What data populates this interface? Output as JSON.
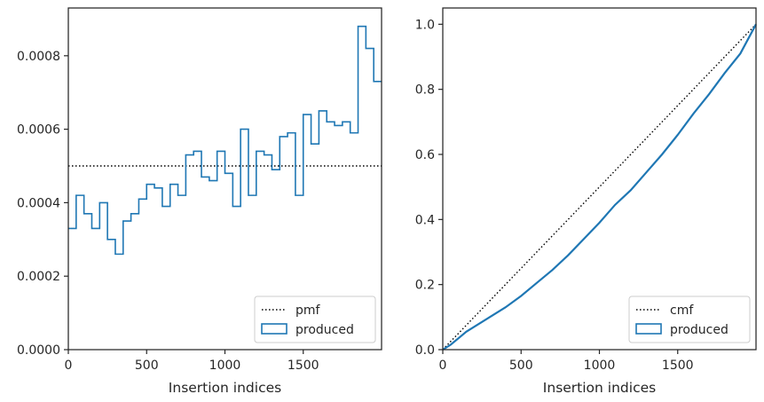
{
  "chart_data": [
    {
      "type": "line",
      "step": true,
      "xlabel": "Insertion indices",
      "ylabel": "",
      "xlim": [
        0,
        2000
      ],
      "ylim": [
        0,
        0.00093
      ],
      "xticks": [
        0,
        500,
        1000,
        1500
      ],
      "yticks": [
        0.0,
        0.0002,
        0.0004,
        0.0006,
        0.0008
      ],
      "ytick_labels": [
        "0.0000",
        "0.0002",
        "0.0004",
        "0.0006",
        "0.0008"
      ],
      "grid": false,
      "legend_position": "lower-right",
      "series": [
        {
          "name": "pmf",
          "style": "dotted",
          "color": "#000000",
          "x": [
            0,
            2000
          ],
          "y": [
            0.0005,
            0.0005
          ]
        },
        {
          "name": "produced",
          "style": "step",
          "color": "#1f77b4",
          "bin_edges": [
            0,
            50,
            100,
            150,
            200,
            250,
            300,
            350,
            400,
            450,
            500,
            550,
            600,
            650,
            700,
            750,
            800,
            850,
            900,
            950,
            1000,
            1050,
            1100,
            1150,
            1200,
            1250,
            1300,
            1350,
            1400,
            1450,
            1500,
            1550,
            1600,
            1650,
            1700,
            1750,
            1800,
            1850,
            1900,
            1950,
            2000
          ],
          "values": [
            0.00033,
            0.00042,
            0.00037,
            0.00033,
            0.0004,
            0.0003,
            0.00026,
            0.00035,
            0.00037,
            0.00041,
            0.00045,
            0.00044,
            0.00039,
            0.00045,
            0.00042,
            0.00053,
            0.00054,
            0.00047,
            0.00046,
            0.00054,
            0.00048,
            0.00039,
            0.0006,
            0.00042,
            0.00054,
            0.00053,
            0.00049,
            0.00058,
            0.00059,
            0.00042,
            0.00064,
            0.00056,
            0.00065,
            0.00062,
            0.00061,
            0.00062,
            0.00059,
            0.00088,
            0.00082,
            0.00073
          ]
        }
      ]
    },
    {
      "type": "line",
      "xlabel": "Insertion indices",
      "ylabel": "",
      "xlim": [
        0,
        2000
      ],
      "ylim": [
        0,
        1.05
      ],
      "xticks": [
        0,
        500,
        1000,
        1500
      ],
      "yticks": [
        0.0,
        0.2,
        0.4,
        0.6,
        0.8,
        1.0
      ],
      "ytick_labels": [
        "0.0",
        "0.2",
        "0.4",
        "0.6",
        "0.8",
        "1.0"
      ],
      "grid": false,
      "legend_position": "lower-right",
      "series": [
        {
          "name": "cmf",
          "style": "dotted",
          "color": "#000000",
          "x": [
            0,
            2000
          ],
          "y": [
            0,
            1.0
          ]
        },
        {
          "name": "produced",
          "style": "solid",
          "color": "#1f77b4",
          "x": [
            0,
            50,
            100,
            150,
            200,
            250,
            300,
            400,
            500,
            600,
            700,
            800,
            900,
            1000,
            1100,
            1200,
            1300,
            1400,
            1500,
            1600,
            1700,
            1800,
            1900,
            2000
          ],
          "y": [
            0,
            0.015,
            0.035,
            0.055,
            0.07,
            0.085,
            0.1,
            0.13,
            0.165,
            0.205,
            0.245,
            0.29,
            0.34,
            0.39,
            0.445,
            0.49,
            0.545,
            0.6,
            0.66,
            0.725,
            0.785,
            0.85,
            0.91,
            1.0
          ]
        }
      ]
    }
  ]
}
